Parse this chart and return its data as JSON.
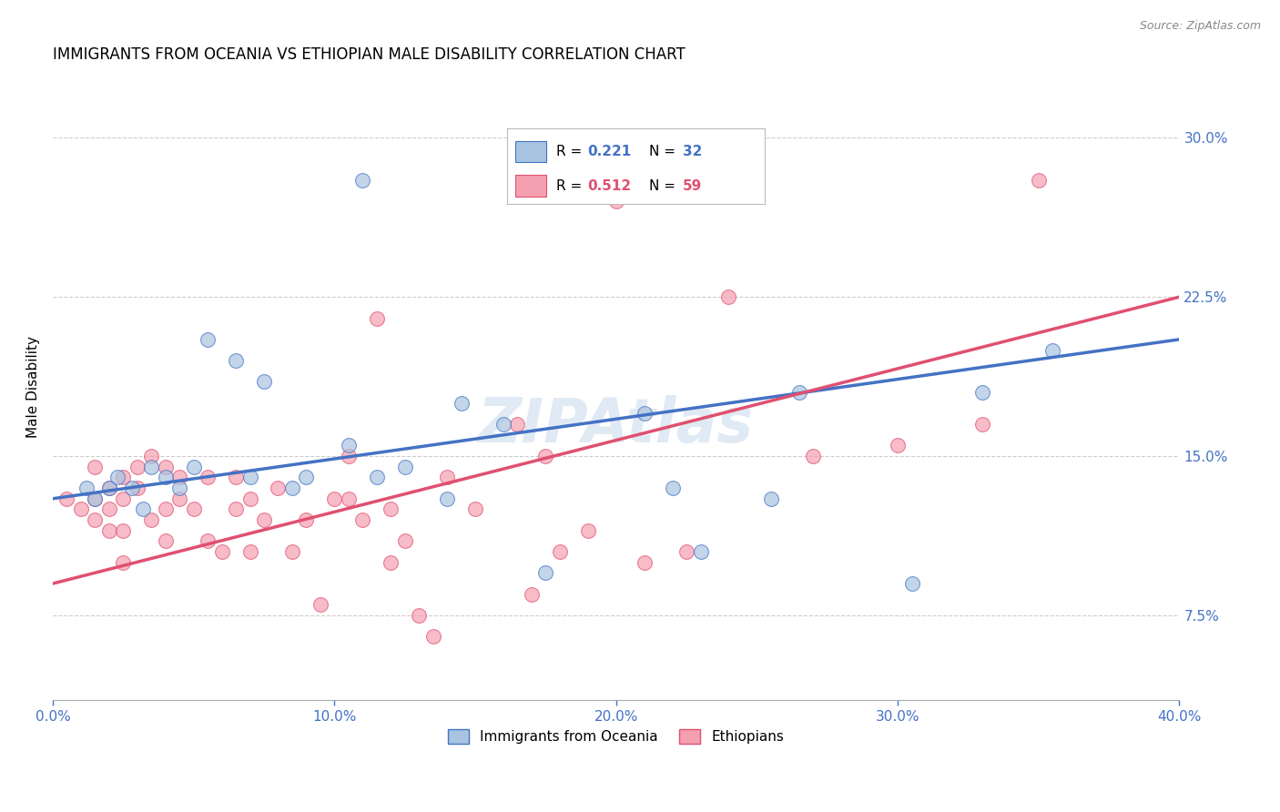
{
  "title": "IMMIGRANTS FROM OCEANIA VS ETHIOPIAN MALE DISABILITY CORRELATION CHART",
  "source": "Source: ZipAtlas.com",
  "ylabel": "Male Disability",
  "y_ticks": [
    7.5,
    15.0,
    22.5,
    30.0
  ],
  "y_tick_labels": [
    "7.5%",
    "15.0%",
    "22.5%",
    "30.0%"
  ],
  "x_ticks": [
    0,
    10,
    20,
    30,
    40
  ],
  "x_tick_labels": [
    "0.0%",
    "10.0%",
    "20.0%",
    "30.0%",
    "40.0%"
  ],
  "x_range": [
    0,
    40
  ],
  "y_range": [
    3.5,
    33
  ],
  "legend_label1": "Immigrants from Oceania",
  "legend_label2": "Ethiopians",
  "color_blue": "#A8C4E0",
  "color_pink": "#F4A0B0",
  "color_blue_line": "#4472C4",
  "color_pink_line": "#E05070",
  "watermark": "ZIPAtlas",
  "blue_x": [
    1.2,
    1.5,
    2.0,
    2.3,
    2.8,
    3.2,
    3.5,
    4.0,
    4.5,
    5.0,
    5.5,
    6.5,
    7.0,
    7.5,
    8.5,
    9.0,
    10.5,
    11.0,
    11.5,
    12.5,
    14.0,
    14.5,
    16.0,
    17.5,
    21.0,
    22.0,
    23.0,
    25.5,
    26.5,
    30.5,
    33.0,
    35.5
  ],
  "blue_y": [
    13.5,
    13.0,
    13.5,
    14.0,
    13.5,
    12.5,
    14.5,
    14.0,
    13.5,
    14.5,
    20.5,
    19.5,
    14.0,
    18.5,
    13.5,
    14.0,
    15.5,
    28.0,
    14.0,
    14.5,
    13.0,
    17.5,
    16.5,
    9.5,
    17.0,
    13.5,
    10.5,
    13.0,
    18.0,
    9.0,
    18.0,
    20.0
  ],
  "pink_x": [
    0.5,
    1.0,
    1.5,
    1.5,
    1.5,
    2.0,
    2.0,
    2.0,
    2.5,
    2.5,
    2.5,
    2.5,
    3.0,
    3.0,
    3.5,
    3.5,
    4.0,
    4.0,
    4.0,
    4.5,
    4.5,
    5.0,
    5.5,
    5.5,
    6.0,
    6.5,
    6.5,
    7.0,
    7.0,
    7.5,
    8.0,
    8.5,
    9.0,
    9.5,
    10.0,
    10.5,
    10.5,
    11.0,
    11.5,
    12.0,
    12.0,
    12.5,
    13.0,
    13.5,
    14.0,
    15.0,
    16.5,
    17.0,
    17.5,
    18.0,
    19.0,
    20.0,
    21.0,
    22.5,
    24.0,
    27.0,
    30.0,
    33.0,
    35.0
  ],
  "pink_y": [
    13.0,
    12.5,
    12.0,
    13.0,
    14.5,
    11.5,
    12.5,
    13.5,
    10.0,
    11.5,
    13.0,
    14.0,
    13.5,
    14.5,
    12.0,
    15.0,
    11.0,
    12.5,
    14.5,
    13.0,
    14.0,
    12.5,
    11.0,
    14.0,
    10.5,
    12.5,
    14.0,
    10.5,
    13.0,
    12.0,
    13.5,
    10.5,
    12.0,
    8.0,
    13.0,
    13.0,
    15.0,
    12.0,
    21.5,
    10.0,
    12.5,
    11.0,
    7.5,
    6.5,
    14.0,
    12.5,
    16.5,
    8.5,
    15.0,
    10.5,
    11.5,
    27.0,
    10.0,
    10.5,
    22.5,
    15.0,
    15.5,
    16.5,
    28.0
  ]
}
